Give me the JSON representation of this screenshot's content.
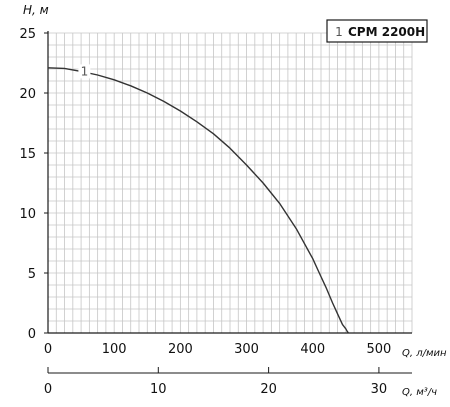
{
  "chart_data": {
    "type": "line",
    "title": "",
    "ylabel": "H, м",
    "xlabel": "Q, л/мин",
    "x2label": "Q, м³/ч",
    "xlim": [
      0,
      550
    ],
    "ylim": [
      0,
      25
    ],
    "x_ticks": [
      "0",
      "100",
      "200",
      "300",
      "400",
      "500"
    ],
    "y_ticks": [
      "0",
      "5",
      "10",
      "15",
      "20",
      "25"
    ],
    "x2_ticks": [
      "0",
      "10",
      "20",
      "30"
    ],
    "legend": {
      "number": "1",
      "name": "CPM 2200H",
      "placement": "top-right"
    },
    "series": [
      {
        "name": "CPM 2200H",
        "label": "1",
        "color": "#333333",
        "x": [
          0,
          25,
          50,
          75,
          100,
          125,
          150,
          175,
          200,
          225,
          250,
          275,
          300,
          325,
          350,
          375,
          400,
          410,
          420,
          430,
          440,
          445,
          450,
          452,
          454
        ],
        "y": [
          22.1,
          22.05,
          21.8,
          21.5,
          21.1,
          20.6,
          20.0,
          19.3,
          18.5,
          17.6,
          16.6,
          15.4,
          14.0,
          12.5,
          10.8,
          8.7,
          6.2,
          5.0,
          3.8,
          2.5,
          1.3,
          0.7,
          0.35,
          0.15,
          0
        ]
      }
    ]
  },
  "colors": {
    "grid": "#c6c6c6",
    "axis": "#1a1a1a",
    "curve": "#333333",
    "legend_number": "#555555",
    "text": "#111111"
  }
}
